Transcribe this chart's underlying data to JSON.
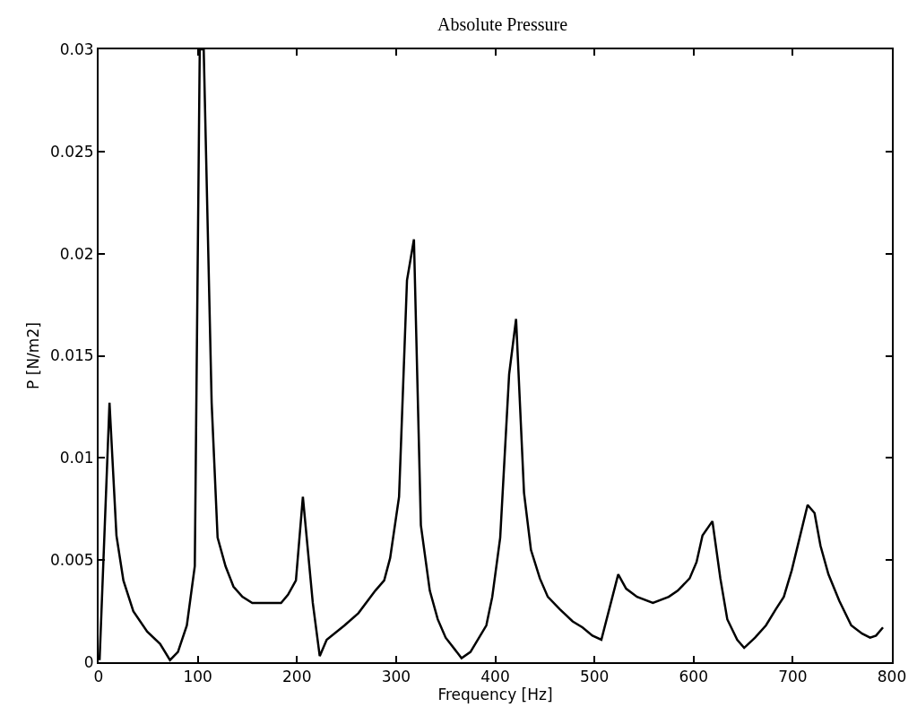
{
  "chart_data": {
    "type": "line",
    "title": "Absolute Pressure",
    "xlabel": "Frequency [Hz]",
    "ylabel": "P [N/m2]",
    "xlim": [
      0,
      800
    ],
    "ylim": [
      0,
      0.03
    ],
    "xticks": [
      0,
      100,
      200,
      300,
      400,
      500,
      600,
      700,
      800
    ],
    "yticks": [
      0,
      0.005,
      0.01,
      0.015,
      0.02,
      0.025,
      0.03
    ],
    "marker": "none",
    "line_style": "solid",
    "series": [
      {
        "color": "#000000",
        "x": [
          1,
          11,
          18,
          25,
          35,
          49,
          62,
          72,
          80,
          89,
          97,
          102,
          106,
          114,
          120,
          128,
          136,
          145,
          155,
          167,
          184,
          191,
          199,
          206,
          216,
          223,
          230,
          248,
          262,
          279,
          288,
          294,
          303,
          311,
          318,
          325,
          334,
          342,
          350,
          366,
          375,
          391,
          397,
          405,
          414,
          421,
          429,
          436,
          445,
          453,
          465,
          478,
          488,
          498,
          507,
          524,
          532,
          543,
          559,
          575,
          584,
          596,
          603,
          609,
          619,
          627,
          634,
          644,
          651,
          662,
          673,
          683,
          691,
          699,
          707,
          715,
          722,
          728,
          736,
          747,
          759,
          770,
          778,
          784,
          791
        ],
        "values": [
          0.0001,
          0.0127,
          0.0062,
          0.004,
          0.0025,
          0.0015,
          0.0009,
          0.0001,
          0.0005,
          0.0018,
          0.0047,
          0.03,
          0.03,
          0.0127,
          0.0061,
          0.0047,
          0.0037,
          0.0032,
          0.0029,
          0.0029,
          0.0029,
          0.0033,
          0.004,
          0.0081,
          0.0029,
          0.0003,
          0.0011,
          0.0018,
          0.0024,
          0.0035,
          0.004,
          0.0051,
          0.0081,
          0.0187,
          0.0207,
          0.0067,
          0.0035,
          0.0021,
          0.0012,
          0.0002,
          0.0005,
          0.0018,
          0.0032,
          0.0061,
          0.0141,
          0.0168,
          0.0083,
          0.0055,
          0.0041,
          0.0032,
          0.0026,
          0.002,
          0.0017,
          0.0013,
          0.0011,
          0.0043,
          0.0036,
          0.0032,
          0.0029,
          0.0032,
          0.0035,
          0.0041,
          0.0049,
          0.0062,
          0.0069,
          0.0041,
          0.0021,
          0.0011,
          0.0007,
          0.0012,
          0.0018,
          0.0026,
          0.0032,
          0.0045,
          0.0061,
          0.0077,
          0.0073,
          0.0057,
          0.0043,
          0.003,
          0.0018,
          0.0014,
          0.0012,
          0.0013,
          0.0017
        ]
      }
    ]
  }
}
